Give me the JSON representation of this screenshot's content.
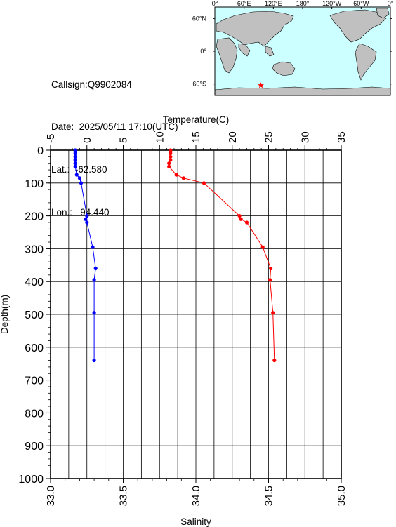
{
  "info": {
    "callsign": "Callsign:Q9902084",
    "date": "Date:  2025/05/11 17:10(UTC)",
    "lat": "Lat.:  -62.580",
    "lon": "Lon.:   94.440"
  },
  "map": {
    "top_labels": [
      "0°",
      "60°E",
      "120°E",
      "180°",
      "120°W",
      "60°W",
      "0°"
    ],
    "lat_labels": [
      "60°N",
      "0°",
      "60°S"
    ],
    "ocean_color": "#ccffff",
    "land_color": "#c0c0c0",
    "marker": {
      "lat": -62.58,
      "lon": 94.44,
      "color": "#ff0000",
      "icon": "star-icon"
    }
  },
  "chart_data": {
    "type": "line",
    "top_axis_label": "Temperature(C)",
    "bottom_axis_label": "Salinity",
    "y_axis_label": "Depth(m)",
    "temperature_ticks": [
      "-5",
      "0",
      "5",
      "10",
      "15",
      "20",
      "25",
      "30",
      "35"
    ],
    "salinity_ticks": [
      "33.0",
      "33.5",
      "34.0",
      "34.5",
      "35.0"
    ],
    "depth_ticks": [
      "0",
      "100",
      "200",
      "300",
      "400",
      "500",
      "600",
      "700",
      "800",
      "900",
      "1000"
    ],
    "temperature_range": [
      -5,
      35
    ],
    "salinity_range": [
      33.0,
      35.0
    ],
    "depth_range": [
      0,
      1000
    ],
    "grid": true,
    "series": [
      {
        "name": "Temperature",
        "color": "#ff0000",
        "points": [
          {
            "depth": 0,
            "temperature": 11.5
          },
          {
            "depth": 5,
            "temperature": 11.5
          },
          {
            "depth": 10,
            "temperature": 11.5
          },
          {
            "depth": 20,
            "temperature": 11.5
          },
          {
            "depth": 30,
            "temperature": 11.5
          },
          {
            "depth": 40,
            "temperature": 11.3
          },
          {
            "depth": 50,
            "temperature": 11.3
          },
          {
            "depth": 75,
            "temperature": 12.3
          },
          {
            "depth": 85,
            "temperature": 13.3
          },
          {
            "depth": 100,
            "temperature": 16.1
          },
          {
            "depth": 200,
            "temperature": 21.0
          },
          {
            "depth": 210,
            "temperature": 21.2
          },
          {
            "depth": 220,
            "temperature": 22.0
          },
          {
            "depth": 295,
            "temperature": 24.2
          },
          {
            "depth": 360,
            "temperature": 25.3
          },
          {
            "depth": 395,
            "temperature": 25.2
          },
          {
            "depth": 495,
            "temperature": 25.6
          },
          {
            "depth": 640,
            "temperature": 25.8
          }
        ]
      },
      {
        "name": "Salinity",
        "color": "#0000ff",
        "points": [
          {
            "depth": 0,
            "salinity": 33.17
          },
          {
            "depth": 5,
            "salinity": 33.17
          },
          {
            "depth": 10,
            "salinity": 33.17
          },
          {
            "depth": 20,
            "salinity": 33.17
          },
          {
            "depth": 30,
            "salinity": 33.17
          },
          {
            "depth": 40,
            "salinity": 33.17
          },
          {
            "depth": 50,
            "salinity": 33.17
          },
          {
            "depth": 75,
            "salinity": 33.18
          },
          {
            "depth": 85,
            "salinity": 33.2
          },
          {
            "depth": 100,
            "salinity": 33.21
          },
          {
            "depth": 200,
            "salinity": 33.25
          },
          {
            "depth": 210,
            "salinity": 33.24
          },
          {
            "depth": 220,
            "salinity": 33.25
          },
          {
            "depth": 295,
            "salinity": 33.29
          },
          {
            "depth": 360,
            "salinity": 33.31
          },
          {
            "depth": 395,
            "salinity": 33.3
          },
          {
            "depth": 495,
            "salinity": 33.3
          },
          {
            "depth": 640,
            "salinity": 33.3
          }
        ]
      }
    ]
  }
}
